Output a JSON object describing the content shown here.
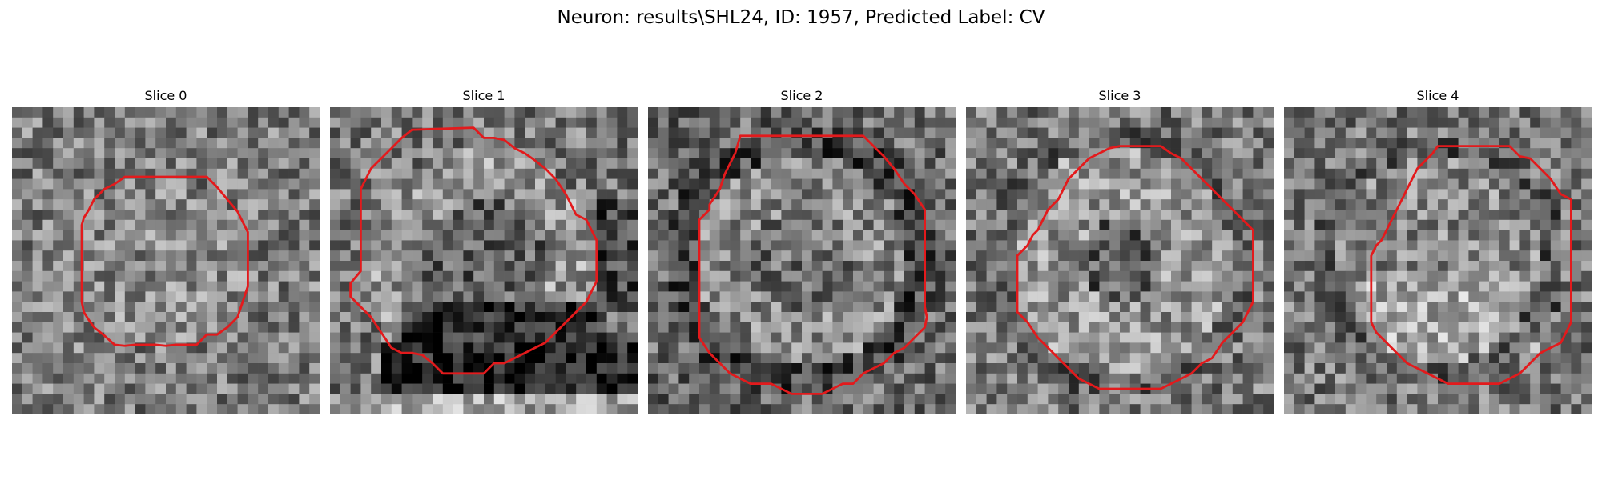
{
  "figure": {
    "title": "Neuron: results\\SHL24, ID: 1957, Predicted Label: CV"
  },
  "panels": [
    {
      "title": "Slice 0",
      "seed": 11,
      "pattern": "uniform"
    },
    {
      "title": "Slice 1",
      "seed": 23,
      "pattern": "bright-ring-dark-base"
    },
    {
      "title": "Slice 2",
      "seed": 37,
      "pattern": "ring"
    },
    {
      "title": "Slice 3",
      "seed": 41,
      "pattern": "ring-dark-center"
    },
    {
      "title": "Slice 4",
      "seed": 53,
      "pattern": "bright-lower"
    }
  ],
  "colors": {
    "contour": "#e31a1c",
    "image_colormap": "gray"
  }
}
